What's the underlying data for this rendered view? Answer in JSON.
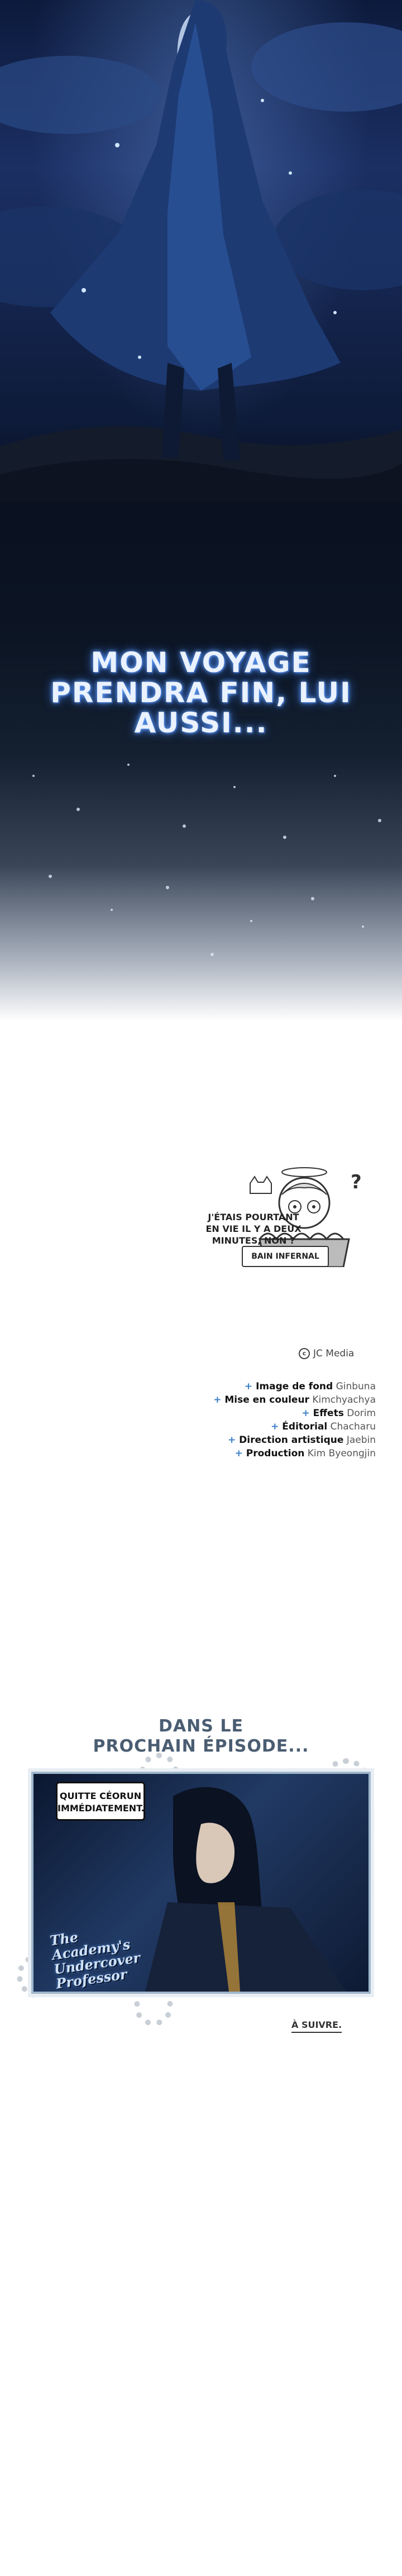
{
  "caption": {
    "lines": [
      "MON VOYAGE",
      "PRENDRA FIN, LUI",
      "AUSSI..."
    ]
  },
  "afterword": {
    "bubble_lines": [
      "J'ÉTAIS POURTANT",
      "EN VIE IL Y A DEUX",
      "MINUTES, NON ?"
    ],
    "bath_sign": "BAIN INFERNAL",
    "question_mark": "?"
  },
  "copyright": {
    "icon": "c",
    "publisher": "JC Media"
  },
  "credits": [
    {
      "role": "Image de fond",
      "name": "Ginbuna"
    },
    {
      "role": "Mise en couleur",
      "name": "Kimchyachya"
    },
    {
      "role": "Effets",
      "name": "Dorim"
    },
    {
      "role": "Éditorial",
      "name": "Chacharu"
    },
    {
      "role": "Direction artistique",
      "name": "Jaebin"
    },
    {
      "role": "Production",
      "name": "Kim Byeongjin"
    }
  ],
  "next_episode": {
    "title_lines": [
      "DANS LE",
      "PROCHAIN ÉPISODE..."
    ],
    "speech_lines": [
      "QUITTE CÉORUN",
      "IMMÉDIATEMENT."
    ],
    "logo_lines": [
      "The",
      "Academy's",
      "Undercover",
      "Professor"
    ],
    "to_continue": "À SUIVRE."
  },
  "colors": {
    "caption_glow": "#6aa6ff",
    "credit_plus": "#3c7fc8",
    "next_title": "#4a5d72",
    "frame": "#9fb7cc"
  }
}
